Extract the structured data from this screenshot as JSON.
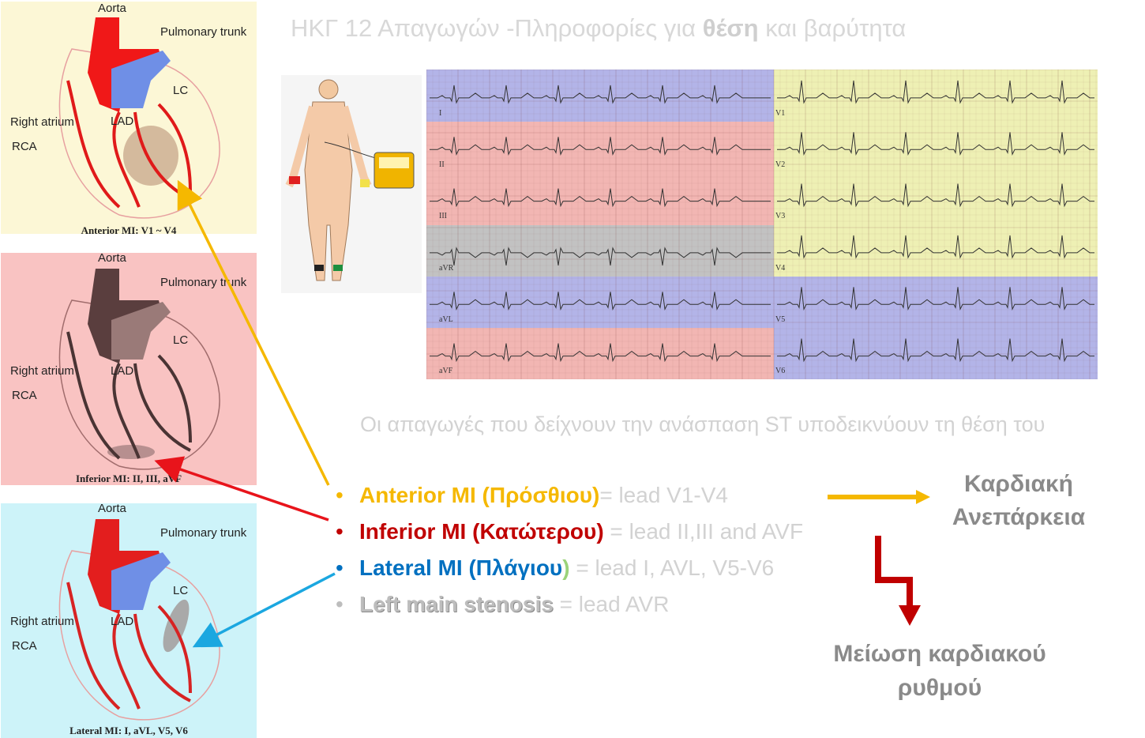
{
  "title": {
    "prefix": "ΗΚΓ 12 Απαγωγών -Πληροφορίες για ",
    "bold": "θέση",
    "suffix": " και βαρύτητα"
  },
  "heart_panels": [
    {
      "labels": {
        "aorta": "Aorta",
        "pulmonary": "Pulmonary trunk",
        "lc": "LC",
        "right_atrium": "Right atrium",
        "lad": "LAD",
        "rca": "RCA"
      },
      "caption": "Anterior MI: V1 ~ V4",
      "bg": "#fcf7d6"
    },
    {
      "labels": {
        "aorta": "Aorta",
        "pulmonary": "Pulmonary trunk",
        "lc": "LC",
        "right_atrium": "Right atrium",
        "lad": "LAD",
        "rca": "RCA"
      },
      "caption": "Inferior MI: II, III, aVF",
      "bg": "#f9c3c2"
    },
    {
      "labels": {
        "aorta": "Aorta",
        "pulmonary": "Pulmonary trunk",
        "lc": "LC",
        "right_atrium": "Right atrium",
        "lad": "LAD",
        "rca": "RCA"
      },
      "caption": "Lateral MI: I, aVL, V5, V6",
      "bg": "#cdf3f9"
    }
  ],
  "ecg": {
    "left_leads": [
      "I",
      "II",
      "III",
      "aVR",
      "aVL",
      "aVF"
    ],
    "right_leads": [
      "V1",
      "V2",
      "V3",
      "V4",
      "V5",
      "V6"
    ]
  },
  "description": "Οι απαγωγές που δείχνουν  την ανάσπαση ST υποδεικνύουν τη θέση του",
  "bullets": [
    {
      "name": "Anterior MI (Πρόσθιου)",
      "rest": "= lead V1-V4",
      "color": "#f5b800"
    },
    {
      "name": "Inferior MI (Κατώτερου)",
      "rest": " = lead II,III and AVF",
      "color": "#c00000"
    },
    {
      "name": "Lateral MI (Πλάγιου",
      "paren": ")",
      "rest": " = lead I, AVL, V5-V6",
      "color": "#0070c0"
    },
    {
      "name": "Left main stenosis",
      "rest": " = lead AVR",
      "color": "#bdbdbd"
    }
  ],
  "outcomes": {
    "heart_failure": "Καρδιακή Ανεπάρκεια",
    "bradycardia": "Μείωση καρδιακού ρυθμού"
  },
  "colors": {
    "anterior": "#f5b800",
    "inferior": "#e8141b",
    "lateral": "#1ba7e0",
    "down_arrow": "#c00000"
  }
}
